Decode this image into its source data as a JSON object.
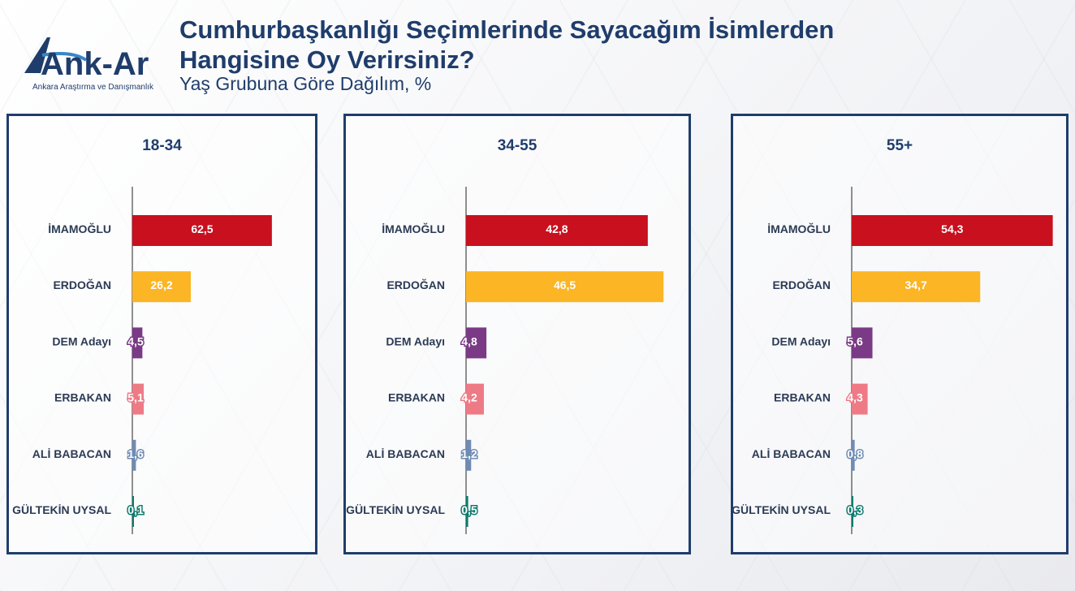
{
  "header": {
    "title_line1": "Cumhurbaşkanlığı Seçimlerinde Sayacağım İsimlerden",
    "title_line2": "Hangisine Oy Verirsiniz?",
    "subtitle": "Yaş Grubuna Göre Dağılım, %"
  },
  "logo": {
    "text": "Ank-Ar",
    "tagline": "Ankara Araştırma ve Danışmanlık"
  },
  "colors": {
    "IMAMOGLU": "#c8101e",
    "ERDOGAN": "#fbb525",
    "DEM": "#7b3a86",
    "ERBAKAN": "#ee7a85",
    "BABACAN": "#6f8bb3",
    "UYSAL": "#0e7b6d",
    "frame": "#1f3d6b"
  },
  "chart_data": [
    {
      "type": "bar",
      "orientation": "horizontal",
      "title": "18-34",
      "categories": [
        "İMAMOĞLU",
        "ERDOĞAN",
        "DEM Adayı",
        "ERBAKAN",
        "ALİ BABACAN",
        "GÜLTEKİN UYSAL"
      ],
      "values": [
        62.5,
        26.2,
        4.5,
        5.1,
        1.6,
        0.1
      ],
      "value_labels": [
        "62,5",
        "26,2",
        "4,5",
        "5,1",
        "1,6",
        "0,1"
      ],
      "xlim": [
        0,
        70
      ]
    },
    {
      "type": "bar",
      "orientation": "horizontal",
      "title": "34-55",
      "categories": [
        "İMAMOĞLU",
        "ERDOĞAN",
        "DEM Adayı",
        "ERBAKAN",
        "ALİ BABACAN",
        "GÜLTEKİN UYSAL"
      ],
      "values": [
        42.8,
        46.5,
        4.8,
        4.2,
        1.2,
        0.5
      ],
      "value_labels": [
        "42,8",
        "46,5",
        "4,8",
        "4,2",
        "1,2",
        "0,5"
      ],
      "xlim": [
        0,
        70
      ]
    },
    {
      "type": "bar",
      "orientation": "horizontal",
      "title": "55+",
      "categories": [
        "İMAMOĞLU",
        "ERDOĞAN",
        "DEM Adayı",
        "ERBAKAN",
        "ALİ BABACAN",
        "GÜLTEKİN UYSAL"
      ],
      "values": [
        54.3,
        34.7,
        5.6,
        4.3,
        0.8,
        0.3
      ],
      "value_labels": [
        "54,3",
        "34,7",
        "5,6",
        "4,3",
        "0,8",
        "0,3"
      ],
      "xlim": [
        0,
        70
      ]
    }
  ]
}
